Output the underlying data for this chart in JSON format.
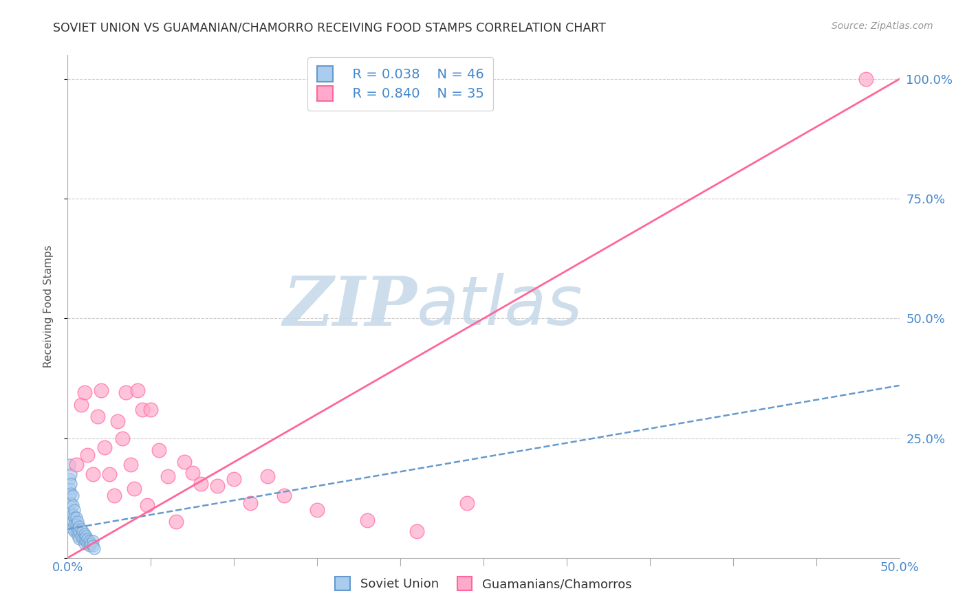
{
  "title": "SOVIET UNION VS GUAMANIAN/CHAMORRO RECEIVING FOOD STAMPS CORRELATION CHART",
  "source": "Source: ZipAtlas.com",
  "ylabel": "Receiving Food Stamps",
  "xmin": 0.0,
  "xmax": 0.5,
  "ymin": 0.0,
  "ymax": 1.05,
  "yticks": [
    0.0,
    0.25,
    0.5,
    0.75,
    1.0
  ],
  "ytick_labels": [
    "",
    "25.0%",
    "50.0%",
    "75.0%",
    "100.0%"
  ],
  "xtick_minor": [
    0.05,
    0.1,
    0.15,
    0.2,
    0.25,
    0.3,
    0.35,
    0.4,
    0.45
  ],
  "xtick_major": [
    0.0,
    0.5
  ],
  "xtick_major_labels": [
    "0.0%",
    "50.0%"
  ],
  "blue_color": "#6699CC",
  "pink_color": "#FF6699",
  "blue_face": "#AACCEE",
  "pink_face": "#FFAACC",
  "background": "#FFFFFF",
  "watermark_zip": "ZIP",
  "watermark_atlas": "atlas",
  "watermark_color": "#C5D8E8",
  "legend_R_blue": "R = 0.038",
  "legend_N_blue": "N = 46",
  "legend_R_pink": "R = 0.840",
  "legend_N_pink": "N = 35",
  "blue_x": [
    0.001,
    0.001,
    0.001,
    0.001,
    0.001,
    0.002,
    0.002,
    0.002,
    0.002,
    0.002,
    0.002,
    0.003,
    0.003,
    0.003,
    0.003,
    0.003,
    0.004,
    0.004,
    0.004,
    0.004,
    0.005,
    0.005,
    0.005,
    0.006,
    0.006,
    0.006,
    0.007,
    0.007,
    0.007,
    0.008,
    0.008,
    0.009,
    0.009,
    0.01,
    0.01,
    0.01,
    0.011,
    0.011,
    0.012,
    0.012,
    0.013,
    0.013,
    0.014,
    0.015,
    0.015,
    0.016
  ],
  "blue_y": [
    0.195,
    0.165,
    0.145,
    0.13,
    0.11,
    0.175,
    0.155,
    0.135,
    0.115,
    0.095,
    0.08,
    0.13,
    0.11,
    0.09,
    0.075,
    0.06,
    0.1,
    0.085,
    0.07,
    0.055,
    0.085,
    0.07,
    0.055,
    0.075,
    0.06,
    0.045,
    0.065,
    0.055,
    0.04,
    0.06,
    0.045,
    0.055,
    0.04,
    0.05,
    0.04,
    0.03,
    0.045,
    0.035,
    0.04,
    0.03,
    0.035,
    0.025,
    0.03,
    0.035,
    0.025,
    0.02
  ],
  "pink_x": [
    0.005,
    0.008,
    0.01,
    0.012,
    0.015,
    0.018,
    0.02,
    0.022,
    0.025,
    0.028,
    0.03,
    0.033,
    0.035,
    0.038,
    0.04,
    0.042,
    0.045,
    0.048,
    0.05,
    0.055,
    0.06,
    0.065,
    0.07,
    0.075,
    0.08,
    0.09,
    0.1,
    0.11,
    0.12,
    0.13,
    0.15,
    0.18,
    0.21,
    0.24,
    0.48
  ],
  "pink_y": [
    0.195,
    0.32,
    0.345,
    0.215,
    0.175,
    0.295,
    0.35,
    0.23,
    0.175,
    0.13,
    0.285,
    0.25,
    0.345,
    0.195,
    0.145,
    0.35,
    0.31,
    0.11,
    0.31,
    0.225,
    0.17,
    0.075,
    0.2,
    0.178,
    0.155,
    0.15,
    0.165,
    0.115,
    0.17,
    0.13,
    0.1,
    0.078,
    0.055,
    0.115,
    1.0
  ],
  "blue_trend_x": [
    0.0,
    0.5
  ],
  "blue_trend_y": [
    0.06,
    0.36
  ],
  "pink_trend_x": [
    0.0,
    0.5
  ],
  "pink_trend_y": [
    0.0,
    1.0
  ]
}
